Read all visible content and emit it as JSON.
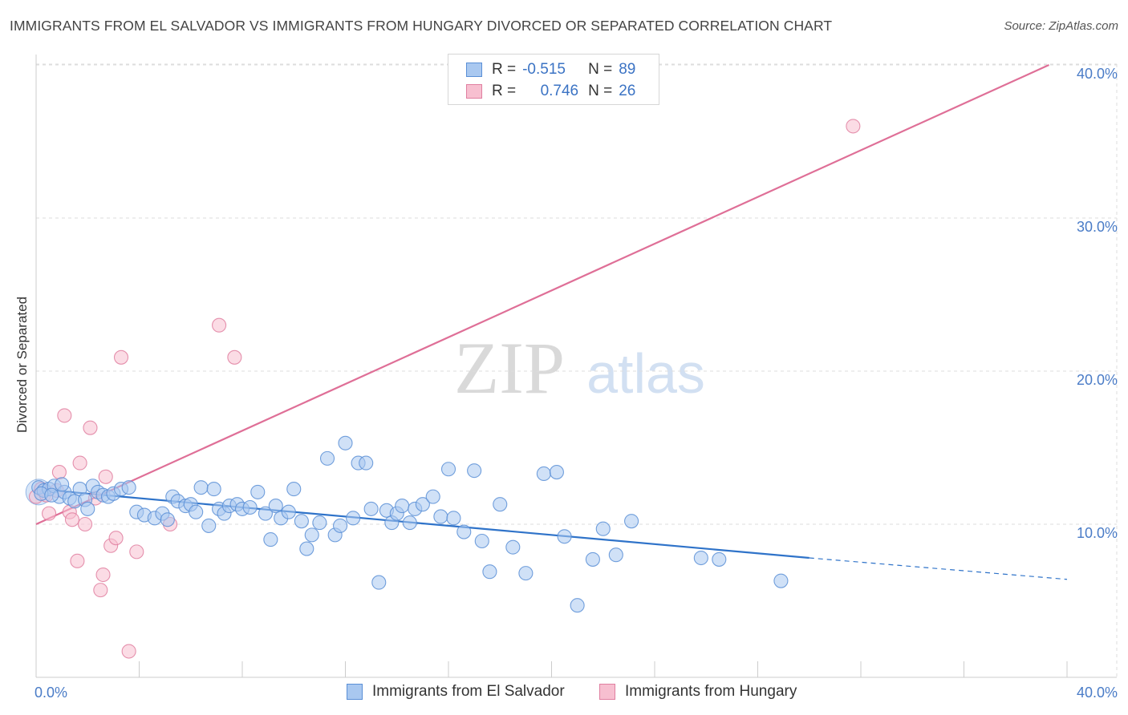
{
  "title": "IMMIGRANTS FROM EL SALVADOR VS IMMIGRANTS FROM HUNGARY DIVORCED OR SEPARATED CORRELATION CHART",
  "source": "Source: ZipAtlas.com",
  "watermark": {
    "zip": "ZIP",
    "atlas": "atlas"
  },
  "legend": {
    "rows": [
      {
        "r_label": "R =",
        "r_value": "-0.515",
        "n_label": "N =",
        "n_value": "89",
        "color": "#a9c8f0",
        "border": "#5a8fd6"
      },
      {
        "r_label": "R =",
        "r_value": "0.746",
        "n_label": "N =",
        "n_value": "26",
        "color": "#f7bfd0",
        "border": "#e07fa0"
      }
    ]
  },
  "bottom_legend": [
    {
      "label": "Immigrants from El Salvador",
      "color": "#a9c8f0",
      "border": "#5a8fd6"
    },
    {
      "label": "Immigrants from Hungary",
      "color": "#f7bfd0",
      "border": "#e07fa0"
    }
  ],
  "chart_data": {
    "type": "scatter",
    "title": "IMMIGRANTS FROM EL SALVADOR VS IMMIGRANTS FROM HUNGARY DIVORCED OR SEPARATED CORRELATION CHART",
    "xlabel": "",
    "ylabel": "Divorced or Separated",
    "xlim": [
      0,
      40
    ],
    "ylim": [
      0,
      40
    ],
    "x_ticks": [
      "0.0%",
      "40.0%"
    ],
    "y_ticks": [
      {
        "value": 10,
        "label": "10.0%"
      },
      {
        "value": 20,
        "label": "20.0%"
      },
      {
        "value": 30,
        "label": "30.0%"
      },
      {
        "value": 40,
        "label": "40.0%"
      }
    ],
    "grid": true,
    "series": [
      {
        "name": "Immigrants from El Salvador",
        "color": "#5a8fd6",
        "fill": "#a9c8f0",
        "trend": {
          "x0": 0,
          "y0": 12.3,
          "x1": 30,
          "y1": 7.8,
          "dash_to_x": 40,
          "dash_to_y": 6.4
        },
        "points": [
          [
            0.1,
            12.4
          ],
          [
            0.3,
            12.2
          ],
          [
            0.5,
            12.3
          ],
          [
            0.7,
            12.5
          ],
          [
            0.9,
            11.8
          ],
          [
            1.1,
            12.1
          ],
          [
            1.3,
            11.7
          ],
          [
            1.5,
            11.5
          ],
          [
            1.7,
            12.3
          ],
          [
            1.9,
            11.6
          ],
          [
            2.2,
            12.5
          ],
          [
            2.4,
            12.1
          ],
          [
            2.6,
            11.9
          ],
          [
            2.8,
            11.8
          ],
          [
            3.0,
            12.0
          ],
          [
            3.3,
            12.3
          ],
          [
            3.6,
            12.4
          ],
          [
            3.9,
            10.8
          ],
          [
            4.2,
            10.6
          ],
          [
            4.6,
            10.4
          ],
          [
            4.9,
            10.7
          ],
          [
            5.1,
            10.3
          ],
          [
            5.3,
            11.8
          ],
          [
            5.5,
            11.5
          ],
          [
            5.8,
            11.2
          ],
          [
            6.0,
            11.3
          ],
          [
            6.2,
            10.8
          ],
          [
            6.4,
            12.4
          ],
          [
            6.7,
            9.9
          ],
          [
            6.9,
            12.3
          ],
          [
            7.1,
            11.0
          ],
          [
            7.3,
            10.7
          ],
          [
            7.5,
            11.2
          ],
          [
            7.8,
            11.3
          ],
          [
            8.0,
            11.0
          ],
          [
            8.3,
            11.1
          ],
          [
            8.6,
            12.1
          ],
          [
            8.9,
            10.7
          ],
          [
            9.1,
            9.0
          ],
          [
            9.3,
            11.2
          ],
          [
            9.5,
            10.4
          ],
          [
            9.8,
            10.8
          ],
          [
            10.0,
            12.3
          ],
          [
            10.3,
            10.2
          ],
          [
            10.5,
            8.4
          ],
          [
            10.7,
            9.3
          ],
          [
            11.0,
            10.1
          ],
          [
            11.3,
            14.3
          ],
          [
            11.6,
            9.3
          ],
          [
            11.8,
            9.9
          ],
          [
            12.0,
            15.3
          ],
          [
            12.3,
            10.4
          ],
          [
            12.5,
            14.0
          ],
          [
            12.8,
            14.0
          ],
          [
            13.0,
            11.0
          ],
          [
            13.3,
            6.2
          ],
          [
            13.6,
            10.9
          ],
          [
            13.8,
            10.1
          ],
          [
            14.0,
            10.7
          ],
          [
            14.2,
            11.2
          ],
          [
            14.5,
            10.1
          ],
          [
            14.7,
            11.0
          ],
          [
            15.0,
            11.3
          ],
          [
            15.4,
            11.8
          ],
          [
            15.7,
            10.5
          ],
          [
            16.0,
            13.6
          ],
          [
            16.2,
            10.4
          ],
          [
            16.6,
            9.5
          ],
          [
            17.0,
            13.5
          ],
          [
            17.3,
            8.9
          ],
          [
            17.6,
            6.9
          ],
          [
            18.0,
            11.3
          ],
          [
            18.5,
            8.5
          ],
          [
            19.0,
            6.8
          ],
          [
            19.7,
            13.3
          ],
          [
            20.2,
            13.4
          ],
          [
            20.5,
            9.2
          ],
          [
            21.0,
            4.7
          ],
          [
            21.6,
            7.7
          ],
          [
            22.0,
            9.7
          ],
          [
            22.5,
            8.0
          ],
          [
            23.1,
            10.2
          ],
          [
            25.8,
            7.8
          ],
          [
            26.5,
            7.7
          ],
          [
            28.9,
            6.3
          ],
          [
            0.2,
            12.0
          ],
          [
            0.6,
            11.9
          ],
          [
            1.0,
            12.6
          ],
          [
            2.0,
            11.0
          ]
        ]
      },
      {
        "name": "Immigrants from Hungary",
        "color": "#e07fa0",
        "fill": "#f7bfd0",
        "trend": {
          "x0": 0,
          "y0": 10.0,
          "x1": 39.3,
          "y1": 40.0
        },
        "points": [
          [
            0.0,
            11.8
          ],
          [
            0.2,
            12.3
          ],
          [
            0.4,
            11.9
          ],
          [
            0.5,
            10.7
          ],
          [
            0.8,
            12.2
          ],
          [
            0.9,
            13.4
          ],
          [
            1.1,
            17.1
          ],
          [
            1.3,
            10.8
          ],
          [
            1.4,
            10.3
          ],
          [
            1.6,
            7.6
          ],
          [
            1.7,
            14.0
          ],
          [
            1.9,
            10.0
          ],
          [
            2.1,
            16.3
          ],
          [
            2.3,
            11.7
          ],
          [
            2.5,
            5.7
          ],
          [
            2.6,
            6.7
          ],
          [
            2.7,
            13.1
          ],
          [
            2.9,
            8.6
          ],
          [
            3.1,
            9.1
          ],
          [
            3.3,
            20.9
          ],
          [
            3.6,
            1.7
          ],
          [
            3.9,
            8.2
          ],
          [
            5.2,
            10.0
          ],
          [
            7.1,
            23.0
          ],
          [
            7.7,
            20.9
          ],
          [
            31.7,
            36.0
          ]
        ]
      }
    ]
  }
}
